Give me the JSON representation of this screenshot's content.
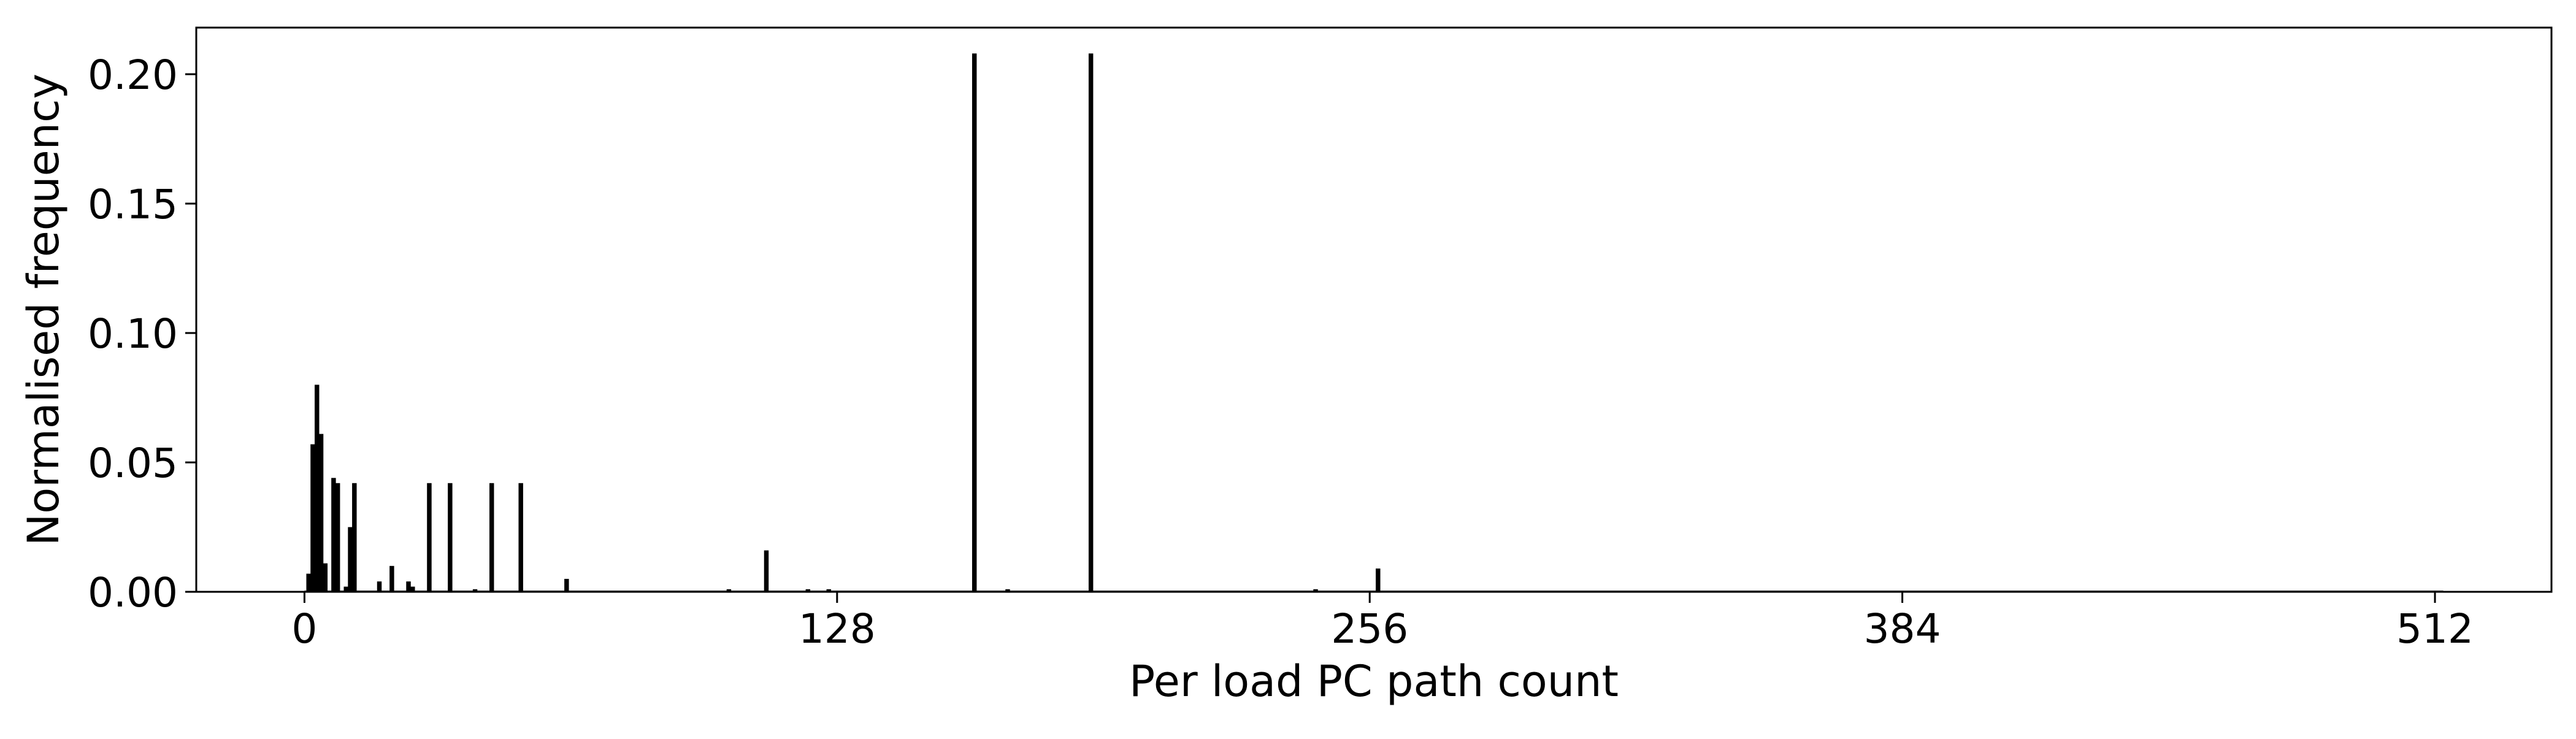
{
  "chart_data": {
    "type": "bar",
    "title": "",
    "xlabel": "Per load PC path count",
    "ylabel": "Normalised frequency",
    "xlim": [
      -26,
      540
    ],
    "ylim": [
      0,
      0.218
    ],
    "xticks": [
      0,
      128,
      256,
      384,
      512
    ],
    "yticks": [
      0.0,
      0.05,
      0.1,
      0.15,
      0.2
    ],
    "ytick_labels": [
      "0.00",
      "0.05",
      "0.10",
      "0.15",
      "0.20"
    ],
    "grid": false,
    "legend": "none",
    "bar_color": "#000000",
    "series": [
      {
        "x": [
          1,
          2,
          3,
          4,
          5,
          7,
          8,
          10,
          11,
          12,
          18,
          21,
          25,
          26,
          30,
          35,
          41,
          45,
          52,
          63,
          102,
          111,
          121,
          126,
          161,
          169,
          189,
          243,
          258
        ],
        "values": [
          0.007,
          0.057,
          0.08,
          0.061,
          0.011,
          0.044,
          0.042,
          0.002,
          0.025,
          0.042,
          0.004,
          0.01,
          0.004,
          0.002,
          0.042,
          0.042,
          0.001,
          0.042,
          0.042,
          0.005,
          0.001,
          0.016,
          0.001,
          0.001,
          0.208,
          0.001,
          0.208,
          0.001,
          0.009
        ]
      }
    ]
  }
}
